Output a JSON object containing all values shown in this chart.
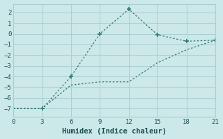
{
  "line1_x": [
    0,
    3,
    6,
    9,
    12,
    15,
    18,
    21
  ],
  "line1_y": [
    -7,
    -7,
    -4,
    0,
    2.3,
    -0.1,
    -0.7,
    -0.6
  ],
  "line1_markers": [
    true,
    true,
    true,
    true,
    true,
    true,
    true,
    true
  ],
  "line2_x": [
    0,
    3,
    6,
    9,
    12,
    15,
    18,
    21
  ],
  "line2_y": [
    -7,
    -7,
    -4.8,
    -4.5,
    -4.5,
    -2.7,
    -1.5,
    -0.6
  ],
  "line_color": "#2d7d6e",
  "bg_color": "#cce8e8",
  "grid_color": "#aacece",
  "xlabel": "Humidex (Indice chaleur)",
  "ylim": [
    -7.8,
    2.8
  ],
  "xlim": [
    0,
    21
  ],
  "xticks": [
    0,
    3,
    6,
    9,
    12,
    15,
    18,
    21
  ],
  "yticks": [
    -7,
    -6,
    -5,
    -4,
    -3,
    -2,
    -1,
    0,
    1,
    2
  ],
  "font_color": "#1a5050",
  "tick_fontsize": 6.5,
  "xlabel_fontsize": 7.5
}
